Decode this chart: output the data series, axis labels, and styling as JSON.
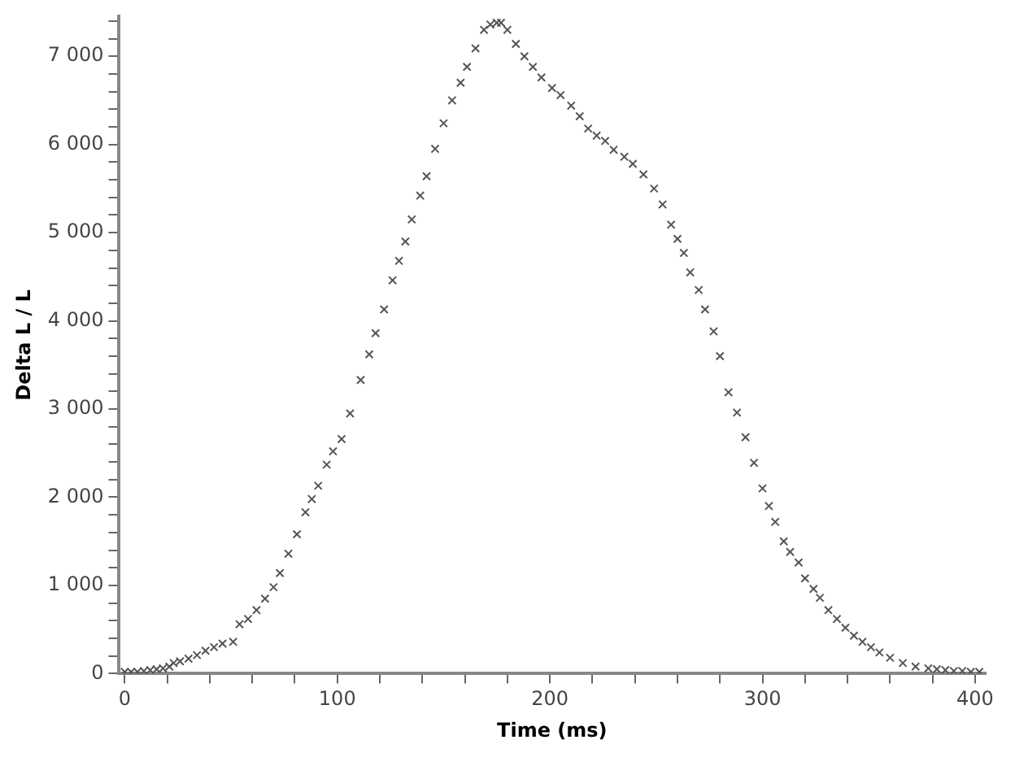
{
  "chart_data": {
    "type": "scatter",
    "xlabel": "Time (ms)",
    "ylabel": "Delta L / L",
    "marker": "cross",
    "grid": false,
    "legend": false,
    "series": [
      {
        "color": "#555555",
        "x": [
          0,
          3,
          6,
          9,
          12,
          15,
          18,
          21,
          23,
          26,
          30,
          34,
          38,
          42,
          46,
          51,
          54,
          58,
          62,
          66,
          70,
          73,
          77,
          81,
          85,
          88,
          91,
          95,
          98,
          102,
          106,
          111,
          115,
          118,
          122,
          126,
          129,
          132,
          135,
          139,
          142,
          146,
          150,
          154,
          158,
          161,
          165,
          169,
          172,
          175,
          177,
          180,
          184,
          188,
          192,
          196,
          201,
          205,
          210,
          214,
          218,
          222,
          226,
          230,
          235,
          239,
          244,
          249,
          253,
          257,
          260,
          263,
          266,
          270,
          273,
          277,
          280,
          284,
          288,
          292,
          296,
          300,
          303,
          306,
          310,
          313,
          317,
          320,
          324,
          327,
          331,
          335,
          339,
          343,
          347,
          351,
          355,
          360,
          366,
          372,
          378,
          382,
          386,
          390,
          394,
          398,
          402
        ],
        "values": [
          20,
          20,
          20,
          30,
          40,
          50,
          60,
          80,
          120,
          140,
          170,
          210,
          260,
          300,
          340,
          360,
          560,
          620,
          720,
          850,
          980,
          1140,
          1360,
          1580,
          1830,
          1980,
          2130,
          2370,
          2520,
          2660,
          2950,
          3330,
          3620,
          3860,
          4130,
          4460,
          4680,
          4900,
          5150,
          5420,
          5640,
          5950,
          6240,
          6500,
          6700,
          6880,
          7090,
          7300,
          7360,
          7380,
          7380,
          7300,
          7140,
          7000,
          6880,
          6760,
          6640,
          6560,
          6440,
          6320,
          6180,
          6100,
          6040,
          5940,
          5860,
          5780,
          5660,
          5500,
          5320,
          5090,
          4930,
          4770,
          4550,
          4350,
          4130,
          3880,
          3600,
          3190,
          2960,
          2680,
          2390,
          2100,
          1900,
          1720,
          1500,
          1380,
          1260,
          1080,
          960,
          860,
          720,
          620,
          520,
          430,
          360,
          300,
          240,
          180,
          120,
          80,
          60,
          50,
          40,
          30,
          30,
          20,
          20
        ]
      }
    ],
    "xlim": [
      -3,
      405
    ],
    "xticks": [
      0,
      {
        "value": 20,
        "label": null
      },
      {
        "value": 40,
        "label": null
      },
      {
        "value": 60,
        "label": null
      },
      {
        "value": 80,
        "label": null
      },
      100,
      {
        "value": 120,
        "label": null
      },
      {
        "value": 140,
        "label": null
      },
      {
        "value": 160,
        "label": null
      },
      {
        "value": 180,
        "label": null
      },
      200,
      {
        "value": 220,
        "label": null
      },
      {
        "value": 240,
        "label": null
      },
      {
        "value": 260,
        "label": null
      },
      {
        "value": 280,
        "label": null
      },
      300,
      {
        "value": 320,
        "label": null
      },
      {
        "value": 340,
        "label": null
      },
      {
        "value": 360,
        "label": null
      },
      {
        "value": 380,
        "label": null
      },
      400
    ],
    "ylim": [
      0,
      7450
    ],
    "yticks": [
      0,
      {
        "value": 200,
        "label": null
      },
      {
        "value": 400,
        "label": null
      },
      {
        "value": 600,
        "label": null
      },
      {
        "value": 800,
        "label": null
      },
      {
        "value": 1000,
        "label": "1 000"
      },
      {
        "value": 1200,
        "label": null
      },
      {
        "value": 1400,
        "label": null
      },
      {
        "value": 1600,
        "label": null
      },
      {
        "value": 1800,
        "label": null
      },
      {
        "value": 2000,
        "label": "2 000"
      },
      {
        "value": 2200,
        "label": null
      },
      {
        "value": 2400,
        "label": null
      },
      {
        "value": 2600,
        "label": null
      },
      {
        "value": 2800,
        "label": null
      },
      {
        "value": 3000,
        "label": "3 000"
      },
      {
        "value": 3200,
        "label": null
      },
      {
        "value": 3400,
        "label": null
      },
      {
        "value": 3600,
        "label": null
      },
      {
        "value": 3800,
        "label": null
      },
      {
        "value": 4000,
        "label": "4 000"
      },
      {
        "value": 4200,
        "label": null
      },
      {
        "value": 4400,
        "label": null
      },
      {
        "value": 4600,
        "label": null
      },
      {
        "value": 4800,
        "label": null
      },
      {
        "value": 5000,
        "label": "5 000"
      },
      {
        "value": 5200,
        "label": null
      },
      {
        "value": 5400,
        "label": null
      },
      {
        "value": 5600,
        "label": null
      },
      {
        "value": 5800,
        "label": null
      },
      {
        "value": 6000,
        "label": "6 000"
      },
      {
        "value": 6200,
        "label": null
      },
      {
        "value": 6400,
        "label": null
      },
      {
        "value": 6600,
        "label": null
      },
      {
        "value": 6800,
        "label": null
      },
      {
        "value": 7000,
        "label": "7 000"
      },
      {
        "value": 7200,
        "label": null
      },
      {
        "value": 7400,
        "label": null
      }
    ]
  }
}
